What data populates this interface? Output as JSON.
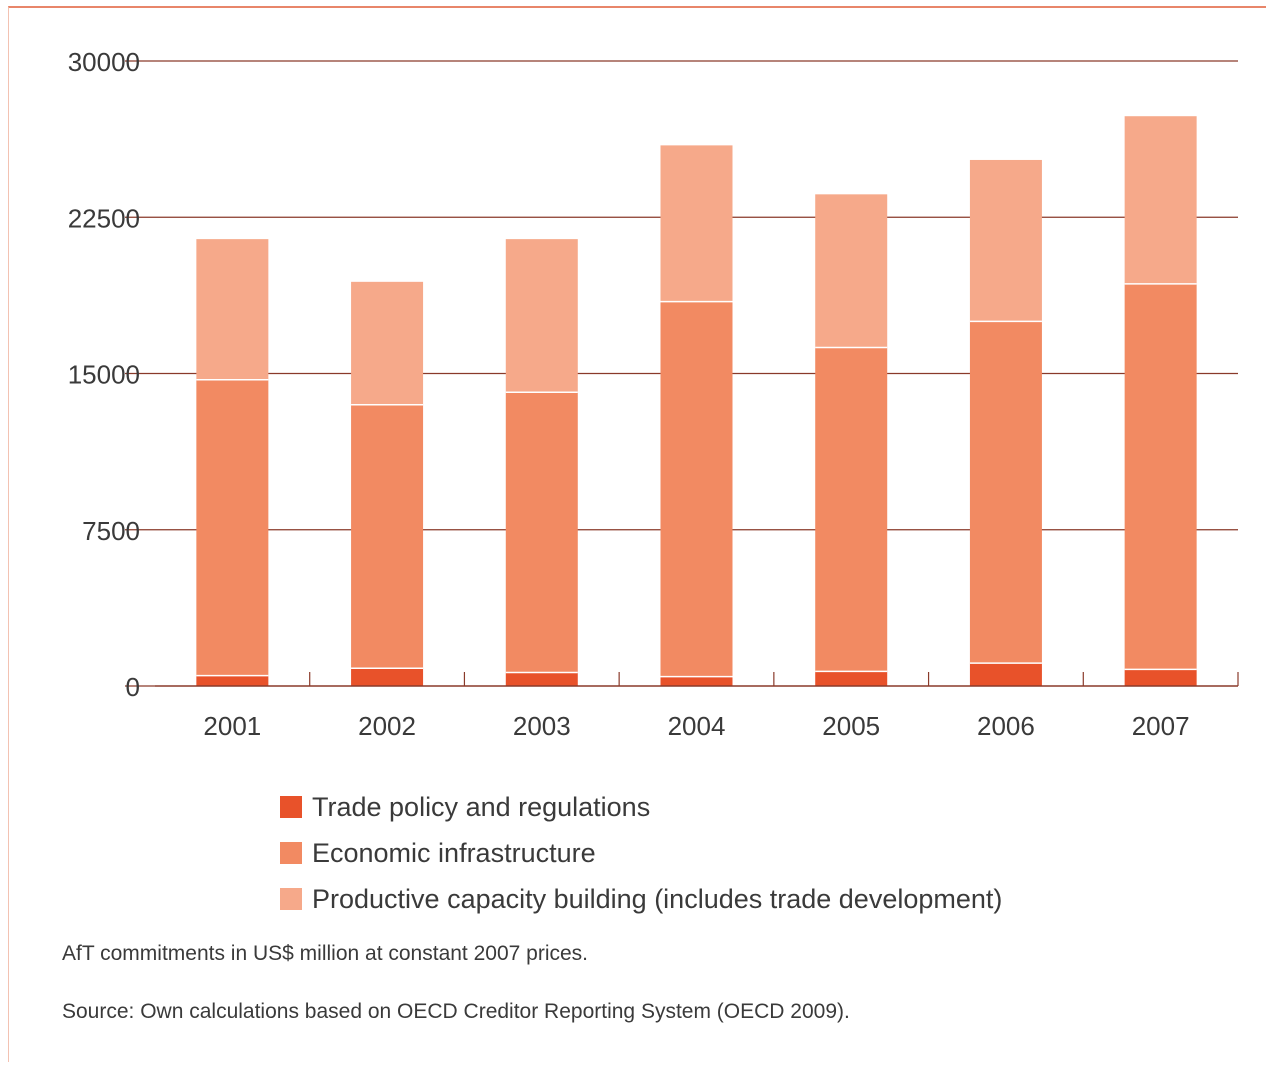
{
  "chart_data": {
    "type": "bar",
    "stacked": true,
    "categories": [
      "2001",
      "2002",
      "2003",
      "2004",
      "2005",
      "2006",
      "2007"
    ],
    "series": [
      {
        "name": "Trade policy and regulations",
        "color": "#e8522a",
        "values": [
          500,
          850,
          650,
          450,
          700,
          1100,
          800
        ]
      },
      {
        "name": "Economic infrastructure",
        "color": "#f28a62",
        "values": [
          14200,
          12650,
          13450,
          18000,
          15550,
          16400,
          18500
        ]
      },
      {
        "name": "Productive capacity building (includes trade development)",
        "color": "#f6a98a",
        "values": [
          6750,
          5900,
          7350,
          7500,
          7350,
          7750,
          8050
        ]
      }
    ],
    "ylim": [
      0,
      30000
    ],
    "yticks": [
      "0",
      "7500",
      "15000",
      "22500",
      "30000"
    ],
    "grid": true,
    "legend_position": "bottom"
  },
  "notes": {
    "units": "AfT commitments in US$ million at constant 2007 prices.",
    "source": "Source: Own calculations based on OECD Creditor Reporting System (OECD 2009)."
  }
}
